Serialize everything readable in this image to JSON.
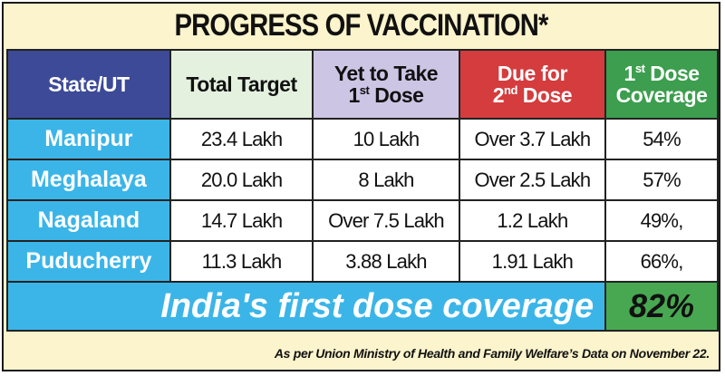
{
  "title": "PROGRESS OF VACCINATION*",
  "headers": {
    "state": "State/UT",
    "total_target": "Total Target",
    "yet_to_take_line1": "Yet to Take",
    "yet_to_take_num": "1",
    "yet_to_take_sup": "st",
    "yet_to_take_word": "Dose",
    "due_line1": "Due for",
    "due_num": "2",
    "due_sup": "nd",
    "due_word": "Dose",
    "coverage_num": "1",
    "coverage_sup": "st",
    "coverage_word": "Dose",
    "coverage_line2": "Coverage"
  },
  "rows": [
    {
      "state": "Manipur",
      "total_target": "23.4 Lakh",
      "yet_to_take": "10 Lakh",
      "due_second": "Over 3.7 Lakh",
      "coverage": "54%"
    },
    {
      "state": "Meghalaya",
      "total_target": "20.0 Lakh",
      "yet_to_take": "8 Lakh",
      "due_second": "Over 2.5 Lakh",
      "coverage": "57%"
    },
    {
      "state": "Nagaland",
      "total_target": "14.7 Lakh",
      "yet_to_take": "Over 7.5 Lakh",
      "due_second": "1.2 Lakh",
      "coverage": "49%,"
    },
    {
      "state": "Puducherry",
      "total_target": "11.3 Lakh",
      "yet_to_take": "3.88 Lakh",
      "due_second": "1.91 Lakh",
      "coverage": "66%,"
    }
  ],
  "footer": {
    "label": "India's first dose coverage",
    "value": "82%"
  },
  "source": "As per Union Ministry of Health and Family Welfare’s Data on November 22.",
  "colors": {
    "background": "#fbf4cc",
    "state_header": "#3d4a97",
    "state_cells": "#3bb5e8",
    "total_target_header": "#e4f1df",
    "yet_to_take_header": "#cdc5e4",
    "due_header": "#d43c3e",
    "coverage_header": "#3c9e4e",
    "footer_value": "#48a852"
  }
}
